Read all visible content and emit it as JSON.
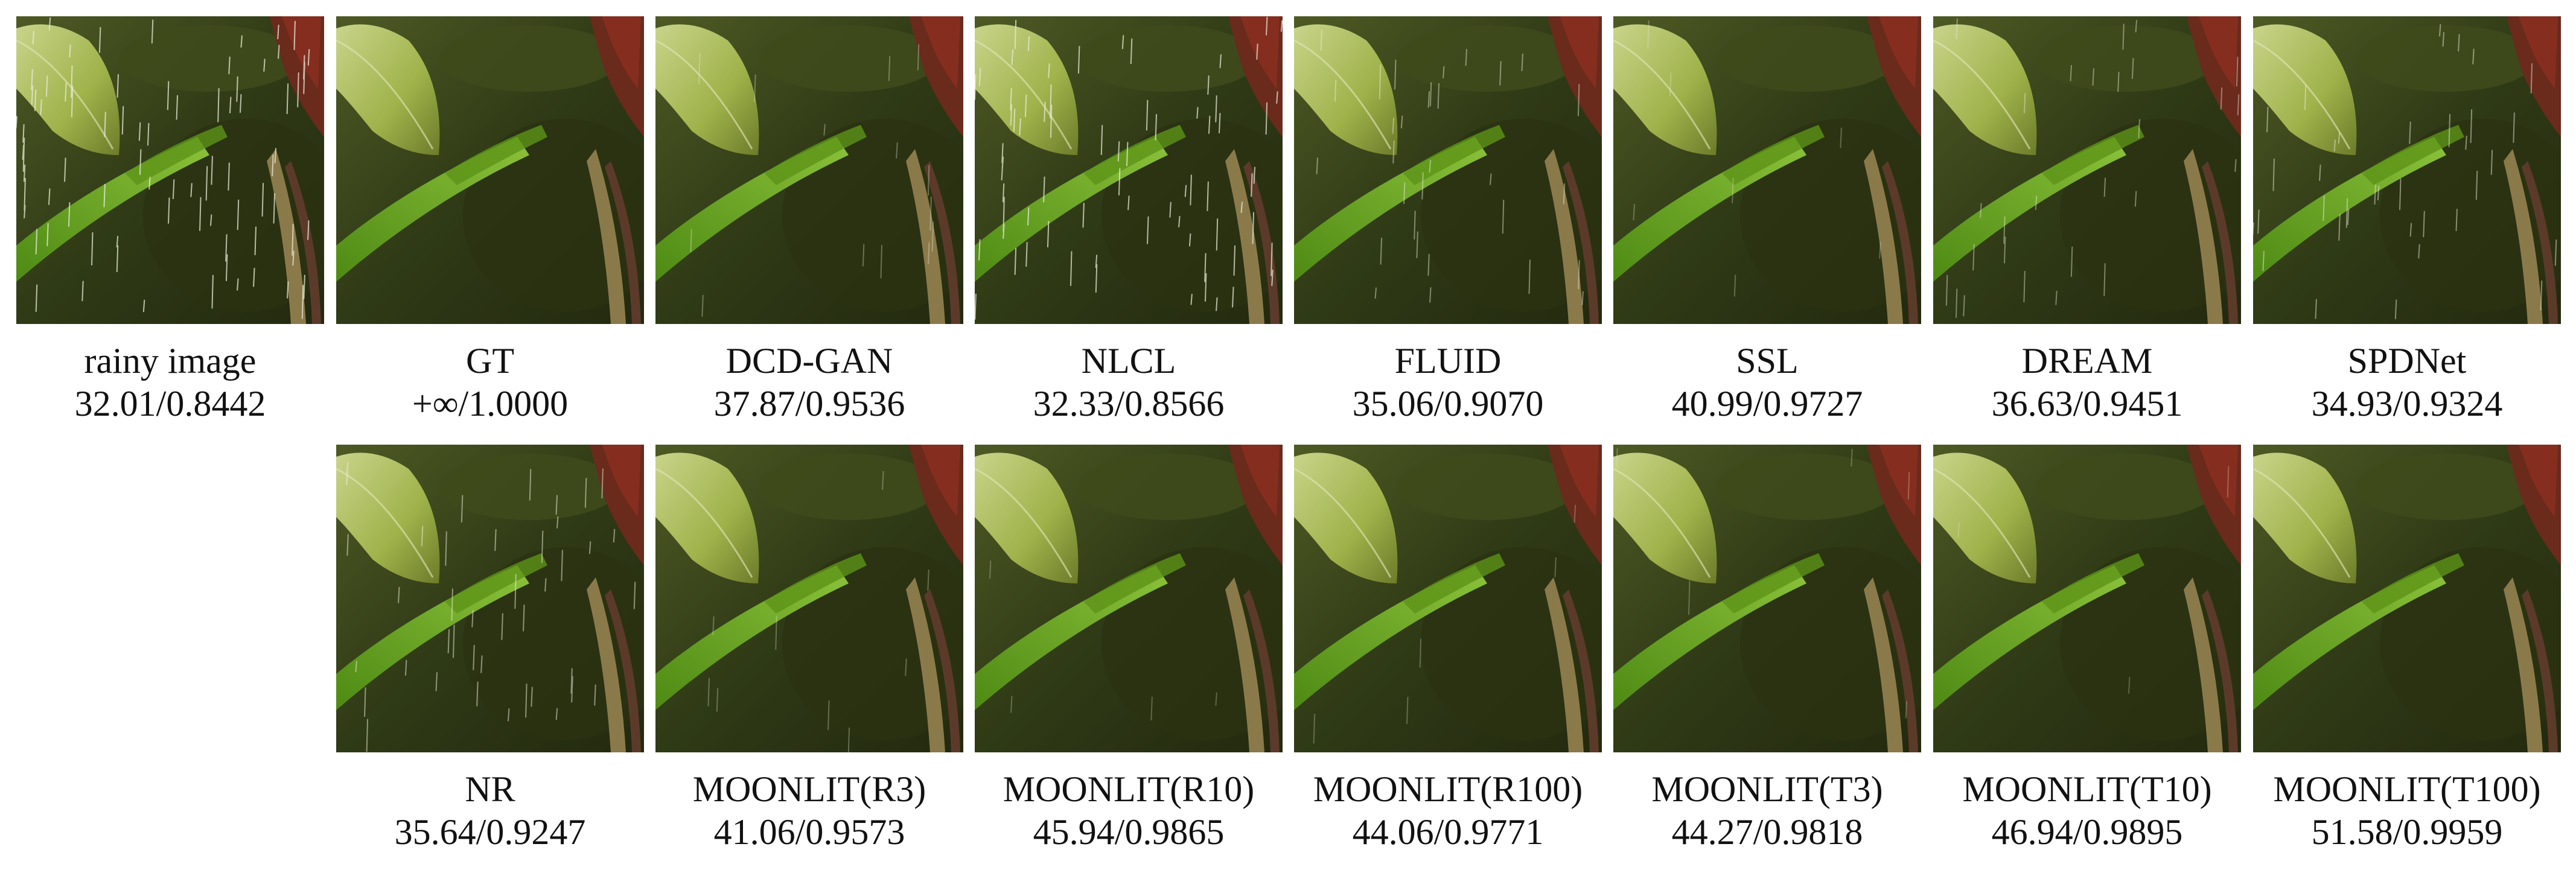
{
  "cells": [
    {
      "method": "rainy image",
      "score": "32.01/0.8442",
      "rain": 0.9
    },
    {
      "method": "GT",
      "score": "+∞/1.0000",
      "rain": 0
    },
    {
      "method": "DCD-GAN",
      "score": "37.87/0.9536",
      "rain": 0.15
    },
    {
      "method": "NLCL",
      "score": "32.33/0.8566",
      "rain": 0.8
    },
    {
      "method": "FLUID",
      "score": "35.06/0.9070",
      "rain": 0.35
    },
    {
      "method": "SSL",
      "score": "40.99/0.9727",
      "rain": 0.08
    },
    {
      "method": "DREAM",
      "score": "36.63/0.9451",
      "rain": 0.3
    },
    {
      "method": "SPDNet",
      "score": "34.93/0.9324",
      "rain": 0.4
    },
    {
      "method": "NR",
      "score": "35.64/0.9247",
      "rain": 0.45
    },
    {
      "method": "MOONLIT(R3)",
      "score": "41.06/0.9573",
      "rain": 0.1
    },
    {
      "method": "MOONLIT(R10)",
      "score": "45.94/0.9865",
      "rain": 0.04
    },
    {
      "method": "MOONLIT(R100)",
      "score": "44.06/0.9771",
      "rain": 0.06
    },
    {
      "method": "MOONLIT(T3)",
      "score": "44.27/0.9818",
      "rain": 0.05
    },
    {
      "method": "MOONLIT(T10)",
      "score": "46.94/0.9895",
      "rain": 0.03
    },
    {
      "method": "MOONLIT(T100)",
      "score": "51.58/0.9959",
      "rain": 0
    }
  ]
}
